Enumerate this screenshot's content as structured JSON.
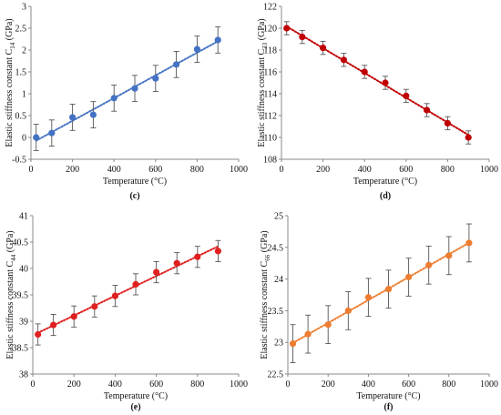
{
  "chart_data": [
    {
      "type": "scatter",
      "panel_label": "(c)",
      "xlabel": "Temperature (°C)",
      "ylabel_main": "Elastic stiffness constant C",
      "ylabel_sub": "14",
      "ylabel_unit": " (GPa)",
      "xlim": [
        0,
        1000
      ],
      "ylim": [
        -0.5,
        3
      ],
      "xticks": [
        "0",
        "200",
        "400",
        "600",
        "800",
        "1000"
      ],
      "yticks": [
        "-0.5",
        "0",
        "0.5",
        "1",
        "1.5",
        "2",
        "2.5",
        "3"
      ],
      "color": "#4472c4",
      "trendline": "dotted linear",
      "error_bars": true,
      "grid": false,
      "series": [
        {
          "x": [
            25,
            100,
            200,
            300,
            400,
            500,
            600,
            700,
            800,
            900
          ],
          "y": [
            0.0,
            0.1,
            0.46,
            0.52,
            0.9,
            1.12,
            1.35,
            1.67,
            2.02,
            2.23
          ],
          "err": [
            0.3,
            0.3,
            0.3,
            0.3,
            0.3,
            0.3,
            0.3,
            0.3,
            0.3,
            0.3
          ]
        }
      ]
    },
    {
      "type": "scatter",
      "panel_label": "(d)",
      "xlabel": "Temperature (°C)",
      "ylabel_main": "Elastic stiffness constant C",
      "ylabel_sub": "33",
      "ylabel_unit": " (GPa)",
      "xlim": [
        0,
        1000
      ],
      "ylim": [
        108,
        122
      ],
      "xticks": [
        "0",
        "200",
        "400",
        "600",
        "800",
        "1000"
      ],
      "yticks": [
        "108",
        "110",
        "112",
        "114",
        "116",
        "118",
        "120",
        "122"
      ],
      "color": "#c00000",
      "trendline": "dotted linear",
      "error_bars": true,
      "grid": false,
      "series": [
        {
          "x": [
            25,
            100,
            200,
            300,
            400,
            500,
            600,
            700,
            800,
            900
          ],
          "y": [
            120.0,
            119.2,
            118.2,
            117.1,
            116.0,
            115.0,
            113.8,
            112.5,
            111.3,
            110.0
          ],
          "err": [
            0.6,
            0.6,
            0.6,
            0.6,
            0.6,
            0.6,
            0.6,
            0.6,
            0.6,
            0.6
          ]
        }
      ]
    },
    {
      "type": "scatter",
      "panel_label": "(e)",
      "xlabel": "Temperature (°C)",
      "ylabel_main": "Elastic stiffness constant C",
      "ylabel_sub": "44",
      "ylabel_unit": " (GPa)",
      "xlim": [
        0,
        1000
      ],
      "ylim": [
        38,
        41
      ],
      "xticks": [
        "0",
        "200",
        "400",
        "600",
        "800",
        "1000"
      ],
      "yticks": [
        "38",
        "38.5",
        "39",
        "39.5",
        "40",
        "40.5",
        "41"
      ],
      "color": "#e02020",
      "trendline": "dotted linear",
      "error_bars": true,
      "grid": false,
      "series": [
        {
          "x": [
            25,
            100,
            200,
            300,
            400,
            500,
            600,
            700,
            800,
            900
          ],
          "y": [
            38.75,
            38.93,
            39.09,
            39.28,
            39.48,
            39.7,
            39.93,
            40.1,
            40.22,
            40.33
          ],
          "err": [
            0.2,
            0.2,
            0.2,
            0.2,
            0.2,
            0.2,
            0.2,
            0.2,
            0.2,
            0.2
          ]
        }
      ]
    },
    {
      "type": "scatter",
      "panel_label": "(f)",
      "xlabel": "Temperature (°C)",
      "ylabel_main": "Elastic stiffness constant C",
      "ylabel_sub": "66",
      "ylabel_unit": " (GPa)",
      "xlim": [
        0,
        1000
      ],
      "ylim": [
        22.5,
        25
      ],
      "xticks": [
        "0",
        "200",
        "400",
        "600",
        "800",
        "1000"
      ],
      "yticks": [
        "22.5",
        "23",
        "23.5",
        "24",
        "24.5",
        "25"
      ],
      "color": "#ed7d31",
      "trendline": "dotted linear",
      "error_bars": true,
      "grid": false,
      "series": [
        {
          "x": [
            25,
            100,
            200,
            300,
            400,
            500,
            600,
            700,
            800,
            900
          ],
          "y": [
            22.98,
            23.13,
            23.28,
            23.5,
            23.71,
            23.84,
            24.03,
            24.22,
            24.37,
            24.57
          ],
          "err": [
            0.3,
            0.3,
            0.3,
            0.3,
            0.3,
            0.3,
            0.3,
            0.3,
            0.3,
            0.3
          ]
        }
      ]
    }
  ]
}
